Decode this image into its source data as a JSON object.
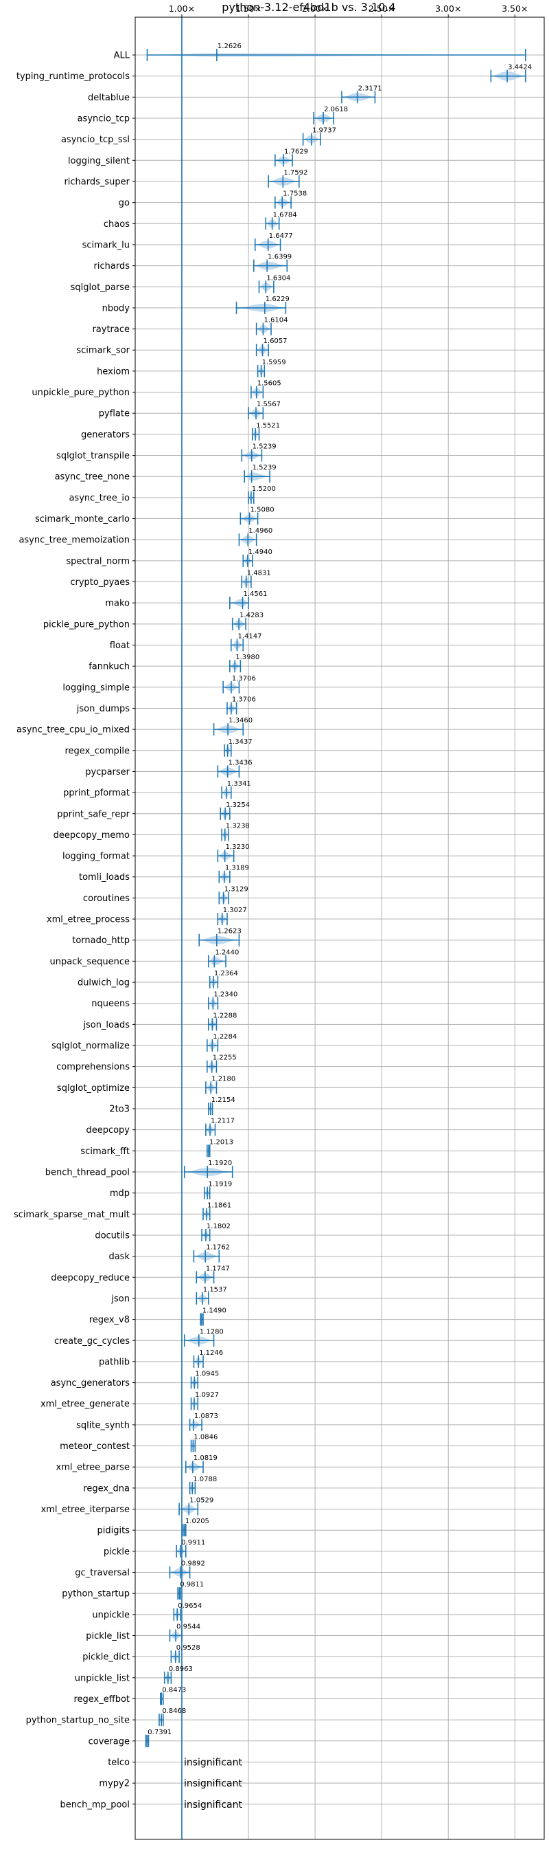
{
  "chart_data": {
    "type": "violin",
    "title": "python-3.12-ef4bd1b vs. 3.10.4",
    "xlabel": "",
    "ylabel": "",
    "xlim": [
      0.65,
      3.72
    ],
    "xticks": [
      1.0,
      1.5,
      2.0,
      2.5,
      3.0,
      3.5
    ],
    "xtick_labels": [
      "1.00×",
      "1.50×",
      "2.00×",
      "2.50×",
      "3.00×",
      "3.50×"
    ],
    "reference_line": 1.0,
    "grid": true,
    "accent_color": "#1f77b4",
    "violin_color": "#aecde8",
    "benchmarks": [
      {
        "name": "ALL",
        "label": "1.2626",
        "mean": 1.2626,
        "min": 0.74,
        "max": 3.58,
        "w": 0.012
      },
      {
        "name": "typing_runtime_protocols",
        "label": "3.4424",
        "mean": 3.4424,
        "min": 3.32,
        "max": 3.58,
        "w": 0.45
      },
      {
        "name": "deltablue",
        "label": "2.3171",
        "mean": 2.3171,
        "min": 2.2,
        "max": 2.45,
        "w": 0.4
      },
      {
        "name": "asyncio_tcp",
        "label": "2.0618",
        "mean": 2.0618,
        "min": 1.99,
        "max": 2.14,
        "w": 0.4
      },
      {
        "name": "asyncio_tcp_ssl",
        "label": "1.9737",
        "mean": 1.9737,
        "min": 1.91,
        "max": 2.04,
        "w": 0.4
      },
      {
        "name": "logging_silent",
        "label": "1.7629",
        "mean": 1.7629,
        "min": 1.7,
        "max": 1.83,
        "w": 0.4
      },
      {
        "name": "richards_super",
        "label": "1.7592",
        "mean": 1.7592,
        "min": 1.65,
        "max": 1.88,
        "w": 0.4
      },
      {
        "name": "go",
        "label": "1.7538",
        "mean": 1.7538,
        "min": 1.7,
        "max": 1.82,
        "w": 0.4
      },
      {
        "name": "chaos",
        "label": "1.6784",
        "mean": 1.6784,
        "min": 1.63,
        "max": 1.73,
        "w": 0.4
      },
      {
        "name": "scimark_lu",
        "label": "1.6477",
        "mean": 1.6477,
        "min": 1.55,
        "max": 1.74,
        "w": 0.4
      },
      {
        "name": "richards",
        "label": "1.6399",
        "mean": 1.6399,
        "min": 1.54,
        "max": 1.79,
        "w": 0.4
      },
      {
        "name": "sqlglot_parse",
        "label": "1.6304",
        "mean": 1.6304,
        "min": 1.58,
        "max": 1.69,
        "w": 0.4
      },
      {
        "name": "nbody",
        "label": "1.6229",
        "mean": 1.6229,
        "min": 1.41,
        "max": 1.78,
        "w": 0.4
      },
      {
        "name": "raytrace",
        "label": "1.6104",
        "mean": 1.6104,
        "min": 1.56,
        "max": 1.67,
        "w": 0.4
      },
      {
        "name": "scimark_sor",
        "label": "1.6057",
        "mean": 1.6057,
        "min": 1.56,
        "max": 1.65,
        "w": 0.4
      },
      {
        "name": "hexiom",
        "label": "1.5959",
        "mean": 1.5959,
        "min": 1.57,
        "max": 1.62,
        "w": 0.4
      },
      {
        "name": "unpickle_pure_python",
        "label": "1.5605",
        "mean": 1.5605,
        "min": 1.52,
        "max": 1.61,
        "w": 0.4
      },
      {
        "name": "pyflate",
        "label": "1.5567",
        "mean": 1.5567,
        "min": 1.5,
        "max": 1.61,
        "w": 0.4
      },
      {
        "name": "generators",
        "label": "1.5521",
        "mean": 1.5521,
        "min": 1.53,
        "max": 1.58,
        "w": 0.4
      },
      {
        "name": "sqlglot_transpile",
        "label": "1.5239",
        "mean": 1.5239,
        "min": 1.45,
        "max": 1.6,
        "w": 0.4
      },
      {
        "name": "async_tree_none",
        "label": "1.5239",
        "mean": 1.5239,
        "min": 1.47,
        "max": 1.66,
        "w": 0.4
      },
      {
        "name": "async_tree_io",
        "label": "1.5200",
        "mean": 1.52,
        "min": 1.5,
        "max": 1.54,
        "w": 0.4
      },
      {
        "name": "scimark_monte_carlo",
        "label": "1.5080",
        "mean": 1.508,
        "min": 1.44,
        "max": 1.57,
        "w": 0.4
      },
      {
        "name": "async_tree_memoization",
        "label": "1.4960",
        "mean": 1.496,
        "min": 1.43,
        "max": 1.56,
        "w": 0.4
      },
      {
        "name": "spectral_norm",
        "label": "1.4940",
        "mean": 1.494,
        "min": 1.46,
        "max": 1.53,
        "w": 0.4
      },
      {
        "name": "crypto_pyaes",
        "label": "1.4831",
        "mean": 1.4831,
        "min": 1.45,
        "max": 1.52,
        "w": 0.4
      },
      {
        "name": "mako",
        "label": "1.4561",
        "mean": 1.4561,
        "min": 1.36,
        "max": 1.5,
        "w": 0.4
      },
      {
        "name": "pickle_pure_python",
        "label": "1.4283",
        "mean": 1.4283,
        "min": 1.38,
        "max": 1.48,
        "w": 0.4
      },
      {
        "name": "float",
        "label": "1.4147",
        "mean": 1.4147,
        "min": 1.37,
        "max": 1.46,
        "w": 0.4
      },
      {
        "name": "fannkuch",
        "label": "1.3980",
        "mean": 1.398,
        "min": 1.36,
        "max": 1.44,
        "w": 0.4
      },
      {
        "name": "logging_simple",
        "label": "1.3706",
        "mean": 1.3706,
        "min": 1.31,
        "max": 1.43,
        "w": 0.4
      },
      {
        "name": "json_dumps",
        "label": "1.3706",
        "mean": 1.3706,
        "min": 1.34,
        "max": 1.41,
        "w": 0.4
      },
      {
        "name": "async_tree_cpu_io_mixed",
        "label": "1.3460",
        "mean": 1.346,
        "min": 1.24,
        "max": 1.46,
        "w": 0.4
      },
      {
        "name": "regex_compile",
        "label": "1.3437",
        "mean": 1.3437,
        "min": 1.32,
        "max": 1.37,
        "w": 0.4
      },
      {
        "name": "pycparser",
        "label": "1.3436",
        "mean": 1.3436,
        "min": 1.27,
        "max": 1.43,
        "w": 0.4
      },
      {
        "name": "pprint_pformat",
        "label": "1.3341",
        "mean": 1.3341,
        "min": 1.3,
        "max": 1.37,
        "w": 0.4
      },
      {
        "name": "pprint_safe_repr",
        "label": "1.3254",
        "mean": 1.3254,
        "min": 1.29,
        "max": 1.36,
        "w": 0.4
      },
      {
        "name": "deepcopy_memo",
        "label": "1.3238",
        "mean": 1.3238,
        "min": 1.3,
        "max": 1.35,
        "w": 0.4
      },
      {
        "name": "logging_format",
        "label": "1.3230",
        "mean": 1.323,
        "min": 1.27,
        "max": 1.39,
        "w": 0.4
      },
      {
        "name": "tomli_loads",
        "label": "1.3189",
        "mean": 1.3189,
        "min": 1.28,
        "max": 1.36,
        "w": 0.4
      },
      {
        "name": "coroutines",
        "label": "1.3129",
        "mean": 1.3129,
        "min": 1.28,
        "max": 1.35,
        "w": 0.4
      },
      {
        "name": "xml_etree_process",
        "label": "1.3027",
        "mean": 1.3027,
        "min": 1.27,
        "max": 1.34,
        "w": 0.4
      },
      {
        "name": "tornado_http",
        "label": "1.2623",
        "mean": 1.2623,
        "min": 1.13,
        "max": 1.43,
        "w": 0.4
      },
      {
        "name": "unpack_sequence",
        "label": "1.2440",
        "mean": 1.244,
        "min": 1.2,
        "max": 1.33,
        "w": 0.4
      },
      {
        "name": "dulwich_log",
        "label": "1.2364",
        "mean": 1.2364,
        "min": 1.21,
        "max": 1.27,
        "w": 0.4
      },
      {
        "name": "nqueens",
        "label": "1.2340",
        "mean": 1.234,
        "min": 1.2,
        "max": 1.27,
        "w": 0.4
      },
      {
        "name": "json_loads",
        "label": "1.2288",
        "mean": 1.2288,
        "min": 1.2,
        "max": 1.26,
        "w": 0.4
      },
      {
        "name": "sqlglot_normalize",
        "label": "1.2284",
        "mean": 1.2284,
        "min": 1.19,
        "max": 1.27,
        "w": 0.4
      },
      {
        "name": "comprehensions",
        "label": "1.2255",
        "mean": 1.2255,
        "min": 1.19,
        "max": 1.26,
        "w": 0.4
      },
      {
        "name": "sqlglot_optimize",
        "label": "1.2180",
        "mean": 1.218,
        "min": 1.18,
        "max": 1.26,
        "w": 0.4
      },
      {
        "name": "2to3",
        "label": "1.2154",
        "mean": 1.2154,
        "min": 1.2,
        "max": 1.23,
        "w": 0.4
      },
      {
        "name": "deepcopy",
        "label": "1.2117",
        "mean": 1.2117,
        "min": 1.18,
        "max": 1.25,
        "w": 0.4
      },
      {
        "name": "scimark_fft",
        "label": "1.2013",
        "mean": 1.2013,
        "min": 1.19,
        "max": 1.21,
        "w": 0.4
      },
      {
        "name": "bench_thread_pool",
        "label": "1.1920",
        "mean": 1.192,
        "min": 1.02,
        "max": 1.38,
        "w": 0.4
      },
      {
        "name": "mdp",
        "label": "1.1919",
        "mean": 1.1919,
        "min": 1.17,
        "max": 1.21,
        "w": 0.4
      },
      {
        "name": "scimark_sparse_mat_mult",
        "label": "1.1861",
        "mean": 1.1861,
        "min": 1.16,
        "max": 1.21,
        "w": 0.4
      },
      {
        "name": "docutils",
        "label": "1.1802",
        "mean": 1.1802,
        "min": 1.15,
        "max": 1.21,
        "w": 0.4
      },
      {
        "name": "dask",
        "label": "1.1762",
        "mean": 1.1762,
        "min": 1.09,
        "max": 1.28,
        "w": 0.4
      },
      {
        "name": "deepcopy_reduce",
        "label": "1.1747",
        "mean": 1.1747,
        "min": 1.11,
        "max": 1.24,
        "w": 0.4
      },
      {
        "name": "json",
        "label": "1.1537",
        "mean": 1.1537,
        "min": 1.11,
        "max": 1.2,
        "w": 0.4
      },
      {
        "name": "regex_v8",
        "label": "1.1490",
        "mean": 1.149,
        "min": 1.14,
        "max": 1.16,
        "w": 0.4
      },
      {
        "name": "create_gc_cycles",
        "label": "1.1280",
        "mean": 1.128,
        "min": 1.02,
        "max": 1.24,
        "w": 0.4
      },
      {
        "name": "pathlib",
        "label": "1.1246",
        "mean": 1.1246,
        "min": 1.09,
        "max": 1.16,
        "w": 0.4
      },
      {
        "name": "async_generators",
        "label": "1.0945",
        "mean": 1.0945,
        "min": 1.07,
        "max": 1.12,
        "w": 0.4
      },
      {
        "name": "xml_etree_generate",
        "label": "1.0927",
        "mean": 1.0927,
        "min": 1.07,
        "max": 1.12,
        "w": 0.4
      },
      {
        "name": "sqlite_synth",
        "label": "1.0873",
        "mean": 1.0873,
        "min": 1.06,
        "max": 1.15,
        "w": 0.4
      },
      {
        "name": "meteor_contest",
        "label": "1.0846",
        "mean": 1.0846,
        "min": 1.07,
        "max": 1.1,
        "w": 0.4
      },
      {
        "name": "xml_etree_parse",
        "label": "1.0819",
        "mean": 1.0819,
        "min": 1.03,
        "max": 1.16,
        "w": 0.4
      },
      {
        "name": "regex_dna",
        "label": "1.0788",
        "mean": 1.0788,
        "min": 1.06,
        "max": 1.1,
        "w": 0.4
      },
      {
        "name": "xml_etree_iterparse",
        "label": "1.0529",
        "mean": 1.0529,
        "min": 0.98,
        "max": 1.12,
        "w": 0.4
      },
      {
        "name": "pidigits",
        "label": "1.0205",
        "mean": 1.0205,
        "min": 1.01,
        "max": 1.03,
        "w": 0.4
      },
      {
        "name": "pickle",
        "label": "0.9911",
        "mean": 0.9911,
        "min": 0.96,
        "max": 1.03,
        "w": 0.4
      },
      {
        "name": "gc_traversal",
        "label": "0.9892",
        "mean": 0.9892,
        "min": 0.91,
        "max": 1.06,
        "w": 0.4
      },
      {
        "name": "python_startup",
        "label": "0.9811",
        "mean": 0.9811,
        "min": 0.97,
        "max": 0.99,
        "w": 0.4
      },
      {
        "name": "unpickle",
        "label": "0.9654",
        "mean": 0.9654,
        "min": 0.94,
        "max": 0.99,
        "w": 0.4
      },
      {
        "name": "pickle_list",
        "label": "0.9544",
        "mean": 0.9544,
        "min": 0.91,
        "max": 1.0,
        "w": 0.4
      },
      {
        "name": "pickle_dict",
        "label": "0.9528",
        "mean": 0.9528,
        "min": 0.92,
        "max": 0.98,
        "w": 0.4
      },
      {
        "name": "unpickle_list",
        "label": "0.8963",
        "mean": 0.8963,
        "min": 0.87,
        "max": 0.92,
        "w": 0.4
      },
      {
        "name": "regex_effbot",
        "label": "0.8473",
        "mean": 0.8473,
        "min": 0.84,
        "max": 0.86,
        "w": 0.4
      },
      {
        "name": "python_startup_no_site",
        "label": "0.8468",
        "mean": 0.8468,
        "min": 0.83,
        "max": 0.86,
        "w": 0.4
      },
      {
        "name": "coverage",
        "label": "0.7391",
        "mean": 0.7391,
        "min": 0.73,
        "max": 0.75,
        "w": 0.4
      },
      {
        "name": "telco",
        "label": "insignificant",
        "insignificant": true
      },
      {
        "name": "mypy2",
        "label": "insignificant",
        "insignificant": true
      },
      {
        "name": "bench_mp_pool",
        "label": "insignificant",
        "insignificant": true
      }
    ]
  }
}
